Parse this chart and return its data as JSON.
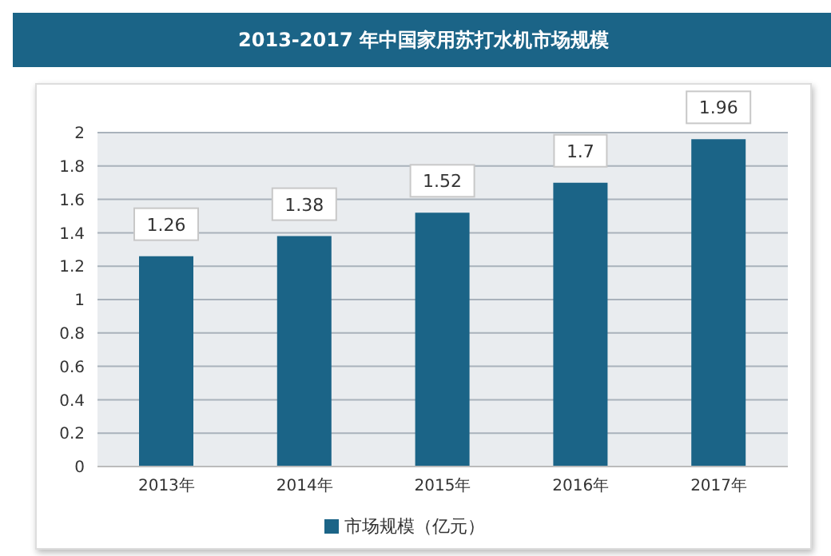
{
  "chart_data": {
    "type": "bar",
    "title": "2013-2017 年中国家用苏打水机市场规模",
    "categories": [
      "2013年",
      "2014年",
      "2015年",
      "2016年",
      "2017年"
    ],
    "series": [
      {
        "name": "市场规模（亿元）",
        "color": "#1b6487",
        "values": [
          1.26,
          1.38,
          1.52,
          1.7,
          1.96
        ]
      }
    ],
    "ylim": [
      0,
      2
    ],
    "yticks": [
      0,
      0.2,
      0.4,
      0.6,
      0.8,
      1,
      1.2,
      1.4,
      1.6,
      1.8,
      2
    ],
    "grid": "y",
    "legend": "bottom",
    "data_labels": true
  }
}
